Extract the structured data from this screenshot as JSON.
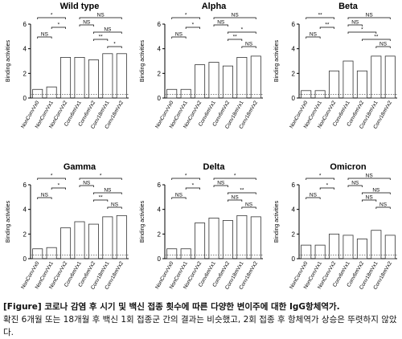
{
  "chart_data": [
    {
      "type": "bar",
      "title": "Wild type",
      "ylabel": "Binding activities",
      "categories": [
        "NonConvVx0",
        "NonConvVx1",
        "NonConvVx2",
        "Conv6mVx1",
        "Conv6mVx2",
        "Conv18mVx1",
        "Conv18mVx2"
      ],
      "values": [
        0.7,
        0.9,
        3.3,
        3.3,
        3.1,
        3.6,
        3.6
      ],
      "color": "#ffffff",
      "ylim": [
        0,
        6
      ],
      "yticks": [
        0,
        2,
        4,
        6
      ],
      "cutoff": 0.3,
      "comparisons": [
        {
          "from": "NonConvVx0",
          "to": "NonConvVx2",
          "label": "*"
        },
        {
          "from": "NonConvVx1",
          "to": "NonConvVx2",
          "label": "*"
        },
        {
          "from": "NonConvVx0",
          "to": "NonConvVx1",
          "label": "NS"
        },
        {
          "from": "Conv6mVx1",
          "to": "Conv18mVx2",
          "label": "NS"
        },
        {
          "from": "Conv6mVx1",
          "to": "Conv6mVx2",
          "label": "NS"
        },
        {
          "from": "Conv6mVx2",
          "to": "Conv18mVx2",
          "label": "NS"
        },
        {
          "from": "Conv6mVx2",
          "to": "Conv18mVx1",
          "label": "**"
        },
        {
          "from": "Conv18mVx1",
          "to": "Conv18mVx2",
          "label": "*"
        }
      ]
    },
    {
      "type": "bar",
      "title": "Alpha",
      "ylabel": "Binding activities",
      "categories": [
        "NonConvVx0",
        "NonConvVx1",
        "NonConvVx2",
        "Conv6mVx1",
        "Conv6mVx2",
        "Conv18mVx1",
        "Conv18mVx2"
      ],
      "values": [
        0.7,
        0.7,
        2.7,
        2.9,
        2.6,
        3.3,
        3.4
      ],
      "color": "#ffffff",
      "ylim": [
        0,
        6
      ],
      "yticks": [
        0,
        2,
        4,
        6
      ],
      "cutoff": 0.3,
      "comparisons": [
        {
          "from": "NonConvVx0",
          "to": "NonConvVx2",
          "label": "*"
        },
        {
          "from": "NonConvVx1",
          "to": "NonConvVx2",
          "label": "*"
        },
        {
          "from": "NonConvVx0",
          "to": "NonConvVx1",
          "label": "NS"
        },
        {
          "from": "Conv6mVx1",
          "to": "Conv18mVx2",
          "label": "NS"
        },
        {
          "from": "Conv6mVx1",
          "to": "Conv6mVx2",
          "label": "NS"
        },
        {
          "from": "Conv6mVx2",
          "to": "Conv18mVx2",
          "label": "*"
        },
        {
          "from": "Conv6mVx2",
          "to": "Conv18mVx1",
          "label": "**"
        },
        {
          "from": "Conv18mVx1",
          "to": "Conv18mVx2",
          "label": "NS"
        }
      ]
    },
    {
      "type": "bar",
      "title": "Beta",
      "ylabel": "Binding activities",
      "categories": [
        "NonConvVx0",
        "NonConvVx1",
        "NonConvVx2",
        "Conv6mVx1",
        "Conv6mVx2",
        "Conv18mVx1",
        "Conv18mVx2"
      ],
      "values": [
        0.6,
        0.6,
        2.2,
        3.0,
        2.2,
        3.4,
        3.4
      ],
      "color": "#ffffff",
      "ylim": [
        0,
        6
      ],
      "yticks": [
        0,
        2,
        4,
        6
      ],
      "cutoff": 0.3,
      "comparisons": [
        {
          "from": "NonConvVx0",
          "to": "NonConvVx2",
          "label": "**"
        },
        {
          "from": "NonConvVx1",
          "to": "NonConvVx2",
          "label": "**"
        },
        {
          "from": "NonConvVx0",
          "to": "NonConvVx1",
          "label": "NS"
        },
        {
          "from": "Conv6mVx1",
          "to": "Conv18mVx2",
          "label": "NS"
        },
        {
          "from": "Conv6mVx1",
          "to": "Conv6mVx2",
          "label": "NS"
        },
        {
          "from": "Conv6mVx1",
          "to": "Conv18mVx1",
          "label": "*"
        },
        {
          "from": "Conv6mVx2",
          "to": "Conv18mVx2",
          "label": "**"
        },
        {
          "from": "Conv18mVx1",
          "to": "Conv18mVx2",
          "label": "NS"
        }
      ]
    },
    {
      "type": "bar",
      "title": "Gamma",
      "ylabel": "Binding activities",
      "categories": [
        "NonConvVx0",
        "NonConvVx1",
        "NonConvVx2",
        "Conv6mVx1",
        "Conv6mVx2",
        "Conv18mVx1",
        "Conv18mVx2"
      ],
      "values": [
        0.8,
        0.9,
        2.5,
        3.0,
        2.8,
        3.4,
        3.5
      ],
      "color": "#ffffff",
      "ylim": [
        0,
        6
      ],
      "yticks": [
        0,
        2,
        4,
        6
      ],
      "cutoff": 0.3,
      "comparisons": [
        {
          "from": "NonConvVx0",
          "to": "NonConvVx2",
          "label": "*"
        },
        {
          "from": "NonConvVx1",
          "to": "NonConvVx2",
          "label": "*"
        },
        {
          "from": "NonConvVx0",
          "to": "NonConvVx1",
          "label": "NS"
        },
        {
          "from": "Conv6mVx1",
          "to": "Conv18mVx2",
          "label": "*"
        },
        {
          "from": "Conv6mVx1",
          "to": "Conv6mVx2",
          "label": "NS"
        },
        {
          "from": "Conv6mVx2",
          "to": "Conv18mVx2",
          "label": "NS"
        },
        {
          "from": "Conv6mVx2",
          "to": "Conv18mVx1",
          "label": "**"
        },
        {
          "from": "Conv18mVx1",
          "to": "Conv18mVx2",
          "label": "NS"
        }
      ]
    },
    {
      "type": "bar",
      "title": "Delta",
      "ylabel": "Binding activities",
      "categories": [
        "NonConvVx0",
        "NonConvVx1",
        "NonConvVx2",
        "Conv6mVx1",
        "Conv6mVx2",
        "Conv18mVx1",
        "Conv18mVx2"
      ],
      "values": [
        0.8,
        0.8,
        2.9,
        3.3,
        3.1,
        3.5,
        3.4
      ],
      "color": "#ffffff",
      "ylim": [
        0,
        6
      ],
      "yticks": [
        0,
        2,
        4,
        6
      ],
      "cutoff": 0.3,
      "comparisons": [
        {
          "from": "NonConvVx0",
          "to": "NonConvVx2",
          "label": "*"
        },
        {
          "from": "NonConvVx1",
          "to": "NonConvVx2",
          "label": "*"
        },
        {
          "from": "NonConvVx0",
          "to": "NonConvVx1",
          "label": "NS"
        },
        {
          "from": "Conv6mVx1",
          "to": "Conv18mVx2",
          "label": "*"
        },
        {
          "from": "Conv6mVx1",
          "to": "Conv6mVx2",
          "label": "NS"
        },
        {
          "from": "Conv6mVx2",
          "to": "Conv18mVx2",
          "label": "**"
        },
        {
          "from": "Conv6mVx2",
          "to": "Conv18mVx1",
          "label": "NS"
        },
        {
          "from": "Conv18mVx1",
          "to": "Conv18mVx2",
          "label": "NS"
        }
      ]
    },
    {
      "type": "bar",
      "title": "Omicron",
      "ylabel": "Binding activities",
      "categories": [
        "NonConvVx0",
        "NonConvVx1",
        "NonConvVx2",
        "Conv6mVx1",
        "Conv6mVx2",
        "Conv18mVx1",
        "Conv18mVx2"
      ],
      "values": [
        1.1,
        1.1,
        2.0,
        1.9,
        1.6,
        2.3,
        1.9
      ],
      "color": "#ffffff",
      "ylim": [
        0,
        6
      ],
      "yticks": [
        0,
        2,
        4,
        6
      ],
      "cutoff": 0.3,
      "comparisons": [
        {
          "from": "NonConvVx0",
          "to": "NonConvVx2",
          "label": "*"
        },
        {
          "from": "NonConvVx1",
          "to": "NonConvVx2",
          "label": "*"
        },
        {
          "from": "NonConvVx0",
          "to": "NonConvVx1",
          "label": "NS"
        },
        {
          "from": "Conv6mVx1",
          "to": "Conv18mVx2",
          "label": "NS"
        },
        {
          "from": "Conv6mVx1",
          "to": "Conv6mVx2",
          "label": "NS"
        },
        {
          "from": "Conv6mVx2",
          "to": "Conv18mVx2",
          "label": "NS"
        },
        {
          "from": "Conv6mVx2",
          "to": "Conv18mVx1",
          "label": "NS"
        },
        {
          "from": "Conv18mVx1",
          "to": "Conv18mVx2",
          "label": "NS"
        }
      ]
    }
  ],
  "caption": {
    "title": "[Figure] 코로나 감염 후 시기 및 백신 접종 횟수에 따른 다양한 변이주에 대한 IgG항체역가.",
    "text": "확진 6개월 또는 18개월 후 백신 1회 접종군 간의 결과는 비슷했고, 2회 접종 후 항체역가 상승은 뚜렷하지 않았다."
  }
}
